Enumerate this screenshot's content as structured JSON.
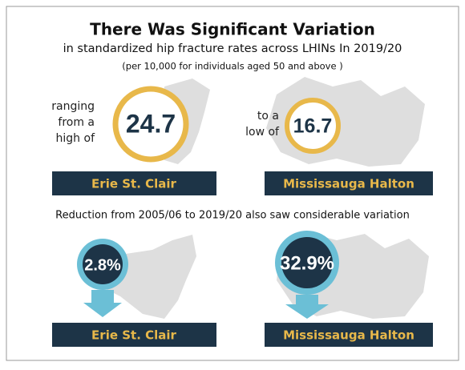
{
  "title": "There Was Significant Variation",
  "subtitle": "in standardized hip fracture rates across LHINs In 2019/20",
  "note": "(per 10,000 for individuals aged 50 and above )",
  "high": {
    "lead": [
      "ranging",
      "from a",
      "high of"
    ],
    "value": "24.7",
    "region": "Erie St. Clair"
  },
  "low": {
    "lead": [
      "to a",
      "low of"
    ],
    "value": "16.7",
    "region": "Mississauga Halton"
  },
  "reduction": {
    "heading": "Reduction from 2005/06 to 2019/20 also saw considerable variation",
    "items": [
      {
        "value": "2.8%",
        "region": "Erie St. Clair"
      },
      {
        "value": "32.9%",
        "region": "Mississauga Halton"
      }
    ]
  }
}
